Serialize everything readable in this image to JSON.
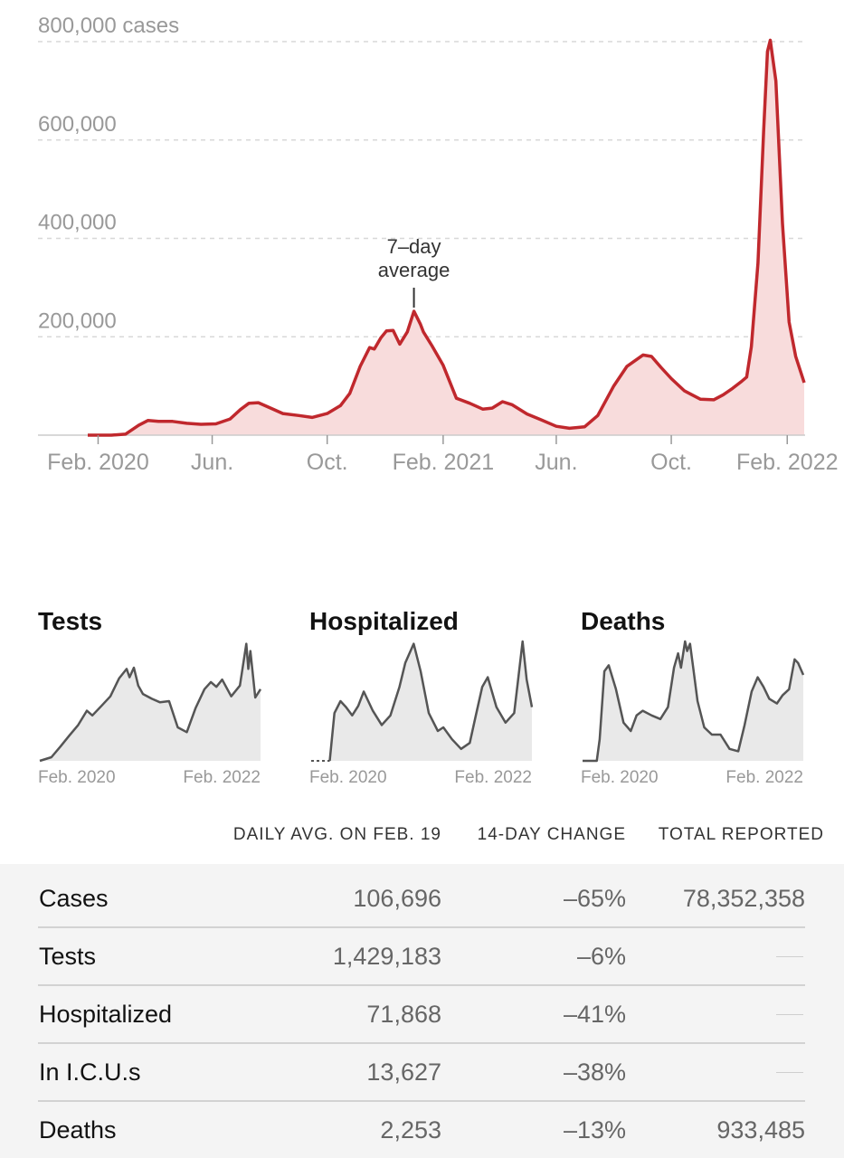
{
  "chart_data": [
    {
      "type": "area",
      "ylabel_suffix": "cases",
      "annotation": "7–day average",
      "annotation_lines": [
        "7–day",
        "average"
      ],
      "ylim": [
        0,
        800000
      ],
      "yticks": [
        "800,000 cases",
        "600,000",
        "400,000",
        "200,000"
      ],
      "ytick_values": [
        800000,
        600000,
        400000,
        200000
      ],
      "xticks": [
        "Feb. 2020",
        "Jun.",
        "Oct.",
        "Feb. 2021",
        "Jun.",
        "Oct.",
        "Feb. 2022"
      ],
      "xtick_dates": [
        "2020-02-01",
        "2020-06-01",
        "2020-10-01",
        "2021-02-01",
        "2021-06-01",
        "2021-10-01",
        "2022-02-01"
      ],
      "colors": {
        "line": "#c0282d",
        "fill": "#f8dcdc",
        "grid": "#d8d8d8",
        "tick_text": "#999999"
      },
      "series": [
        {
          "x": [
            "2020-01-21",
            "2020-02-15",
            "2020-03-01",
            "2020-03-15",
            "2020-03-25",
            "2020-04-05",
            "2020-04-20",
            "2020-05-05",
            "2020-05-20",
            "2020-06-05",
            "2020-06-20",
            "2020-07-01",
            "2020-07-10",
            "2020-07-20",
            "2020-08-01",
            "2020-08-15",
            "2020-09-01",
            "2020-09-15",
            "2020-10-01",
            "2020-10-15",
            "2020-10-25",
            "2020-11-05",
            "2020-11-15",
            "2020-11-20",
            "2020-11-27",
            "2020-12-03",
            "2020-12-10",
            "2020-12-17",
            "2020-12-25",
            "2021-01-01",
            "2021-01-08",
            "2021-01-11",
            "2021-01-20",
            "2021-02-01",
            "2021-02-15",
            "2021-03-01",
            "2021-03-15",
            "2021-03-25",
            "2021-04-05",
            "2021-04-15",
            "2021-05-01",
            "2021-05-15",
            "2021-06-01",
            "2021-06-15",
            "2021-07-01",
            "2021-07-15",
            "2021-08-01",
            "2021-08-15",
            "2021-09-01",
            "2021-09-10",
            "2021-09-20",
            "2021-10-01",
            "2021-10-15",
            "2021-11-01",
            "2021-11-15",
            "2021-11-25",
            "2021-12-05",
            "2021-12-15",
            "2021-12-20",
            "2021-12-25",
            "2022-01-01",
            "2022-01-07",
            "2022-01-11",
            "2022-01-14",
            "2022-01-20",
            "2022-01-27",
            "2022-02-03",
            "2022-02-10",
            "2022-02-19"
          ],
          "y": [
            0,
            0,
            2000,
            20000,
            30000,
            28000,
            28000,
            24000,
            22000,
            23000,
            33000,
            52000,
            65000,
            66000,
            56000,
            44000,
            40000,
            36000,
            44000,
            60000,
            85000,
            140000,
            178000,
            175000,
            198000,
            212000,
            213000,
            185000,
            210000,
            252000,
            225000,
            210000,
            182000,
            142000,
            75000,
            65000,
            53000,
            55000,
            68000,
            62000,
            43000,
            32000,
            18000,
            14000,
            17000,
            40000,
            100000,
            140000,
            163000,
            160000,
            138000,
            115000,
            90000,
            73000,
            72000,
            82000,
            95000,
            110000,
            118000,
            180000,
            350000,
            620000,
            780000,
            803000,
            720000,
            430000,
            230000,
            160000,
            106696
          ]
        }
      ]
    },
    {
      "type": "area",
      "title": "Tests",
      "xticks": [
        "Feb. 2020",
        "Feb. 2022"
      ],
      "ylim": [
        0,
        1
      ],
      "series": [
        {
          "x": [
            "2020-01-21",
            "2020-03-01",
            "2020-04-01",
            "2020-05-01",
            "2020-06-01",
            "2020-07-01",
            "2020-07-20",
            "2020-08-20",
            "2020-09-20",
            "2020-10-20",
            "2020-11-15",
            "2020-11-25",
            "2020-12-10",
            "2020-12-25",
            "2021-01-10",
            "2021-02-10",
            "2021-03-10",
            "2021-04-10",
            "2021-05-10",
            "2021-06-10",
            "2021-07-10",
            "2021-08-10",
            "2021-09-01",
            "2021-09-20",
            "2021-10-10",
            "2021-11-10",
            "2021-12-10",
            "2022-01-01",
            "2022-01-08",
            "2022-01-15",
            "2022-02-01",
            "2022-02-19"
          ],
          "y": [
            0,
            0.03,
            0.12,
            0.21,
            0.3,
            0.42,
            0.38,
            0.46,
            0.54,
            0.69,
            0.77,
            0.7,
            0.78,
            0.63,
            0.56,
            0.52,
            0.49,
            0.5,
            0.28,
            0.24,
            0.44,
            0.6,
            0.66,
            0.62,
            0.68,
            0.54,
            0.63,
            0.98,
            0.77,
            0.92,
            0.53,
            0.6
          ]
        }
      ]
    },
    {
      "type": "area",
      "title": "Hospitalized",
      "xticks": [
        "Feb. 2020",
        "Feb. 2022"
      ],
      "ylim": [
        0,
        1
      ],
      "series": [
        {
          "x": [
            "2020-03-25",
            "2020-04-10",
            "2020-05-01",
            "2020-05-20",
            "2020-06-10",
            "2020-07-01",
            "2020-07-20",
            "2020-08-20",
            "2020-09-20",
            "2020-10-20",
            "2020-11-20",
            "2020-12-10",
            "2021-01-08",
            "2021-02-01",
            "2021-03-01",
            "2021-04-01",
            "2021-04-20",
            "2021-05-20",
            "2021-06-20",
            "2021-07-20",
            "2021-08-10",
            "2021-09-01",
            "2021-09-20",
            "2021-10-20",
            "2021-11-20",
            "2021-12-20",
            "2022-01-01",
            "2022-01-18",
            "2022-02-01",
            "2022-02-19"
          ],
          "y": [
            0,
            0.4,
            0.5,
            0.45,
            0.38,
            0.46,
            0.58,
            0.42,
            0.3,
            0.38,
            0.62,
            0.82,
            0.98,
            0.75,
            0.4,
            0.25,
            0.28,
            0.18,
            0.1,
            0.15,
            0.38,
            0.62,
            0.7,
            0.45,
            0.32,
            0.4,
            0.65,
            1.0,
            0.68,
            0.45
          ]
        }
      ]
    },
    {
      "type": "area",
      "title": "Deaths",
      "xticks": [
        "Feb. 2020",
        "Feb. 2022"
      ],
      "ylim": [
        0,
        1
      ],
      "series": [
        {
          "x": [
            "2020-01-21",
            "2020-03-10",
            "2020-03-20",
            "2020-04-05",
            "2020-04-20",
            "2020-05-15",
            "2020-06-10",
            "2020-07-05",
            "2020-07-25",
            "2020-08-15",
            "2020-09-15",
            "2020-10-15",
            "2020-11-10",
            "2020-12-01",
            "2020-12-15",
            "2020-12-25",
            "2021-01-08",
            "2021-01-15",
            "2021-01-25",
            "2021-02-05",
            "2021-02-20",
            "2021-03-15",
            "2021-04-10",
            "2021-05-10",
            "2021-06-10",
            "2021-07-10",
            "2021-08-01",
            "2021-08-25",
            "2021-09-15",
            "2021-10-05",
            "2021-10-25",
            "2021-11-20",
            "2021-12-10",
            "2022-01-01",
            "2022-01-20",
            "2022-02-01",
            "2022-02-19"
          ],
          "y": [
            0,
            0,
            0.18,
            0.75,
            0.8,
            0.6,
            0.32,
            0.25,
            0.38,
            0.42,
            0.38,
            0.35,
            0.45,
            0.78,
            0.9,
            0.78,
            1.0,
            0.92,
            0.98,
            0.78,
            0.5,
            0.28,
            0.22,
            0.22,
            0.1,
            0.08,
            0.3,
            0.58,
            0.7,
            0.62,
            0.52,
            0.48,
            0.55,
            0.6,
            0.85,
            0.82,
            0.72
          ]
        }
      ]
    }
  ],
  "table": {
    "columns": [
      "DAILY AVG. ON FEB. 19",
      "14-DAY CHANGE",
      "TOTAL REPORTED"
    ],
    "rows": [
      {
        "label": "Cases",
        "avg": "106,696",
        "change": "–65%",
        "total": "78,352,358"
      },
      {
        "label": "Tests",
        "avg": "1,429,183",
        "change": "–6%",
        "total": ""
      },
      {
        "label": "Hospitalized",
        "avg": "71,868",
        "change": "–41%",
        "total": ""
      },
      {
        "label": "In I.C.U.s",
        "avg": "13,627",
        "change": "–38%",
        "total": ""
      },
      {
        "label": "Deaths",
        "avg": "2,253",
        "change": "–13%",
        "total": "933,485"
      }
    ]
  }
}
